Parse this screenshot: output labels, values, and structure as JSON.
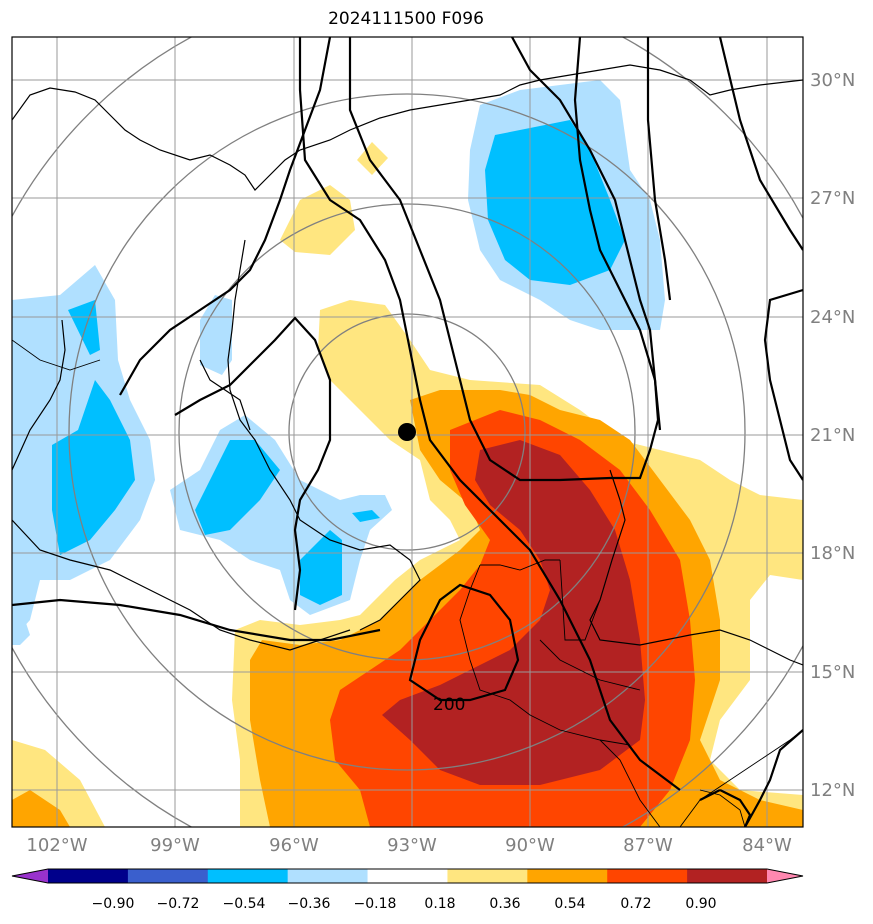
{
  "title": "2024111500 F096",
  "map": {
    "lat_labels": [
      "30°N",
      "27°N",
      "24°N",
      "21°N",
      "18°N",
      "15°N",
      "12°N"
    ],
    "lon_labels": [
      "102°W",
      "99°W",
      "96°W",
      "93°W",
      "90°W",
      "87°W",
      "84°W"
    ],
    "contour_label": "200"
  },
  "colorbar": {
    "ticks": [
      "−0.90",
      "−0.72",
      "−0.54",
      "−0.36",
      "−0.18",
      "0.18",
      "0.36",
      "0.54",
      "0.72",
      "0.90"
    ],
    "colors": [
      "#9932cc",
      "#00008b",
      "#3a5fcd",
      "#00bfff",
      "#b0e0ff",
      "#ffffff",
      "#ffe680",
      "#ffa500",
      "#ff4500",
      "#b22222",
      "#ff88b0"
    ]
  },
  "colors": {
    "light_blue": "#b0e0ff",
    "blue": "#00bfff",
    "yellow": "#ffe680",
    "orange": "#ffa500",
    "red_orange": "#ff4500",
    "dark_red": "#b22222"
  }
}
